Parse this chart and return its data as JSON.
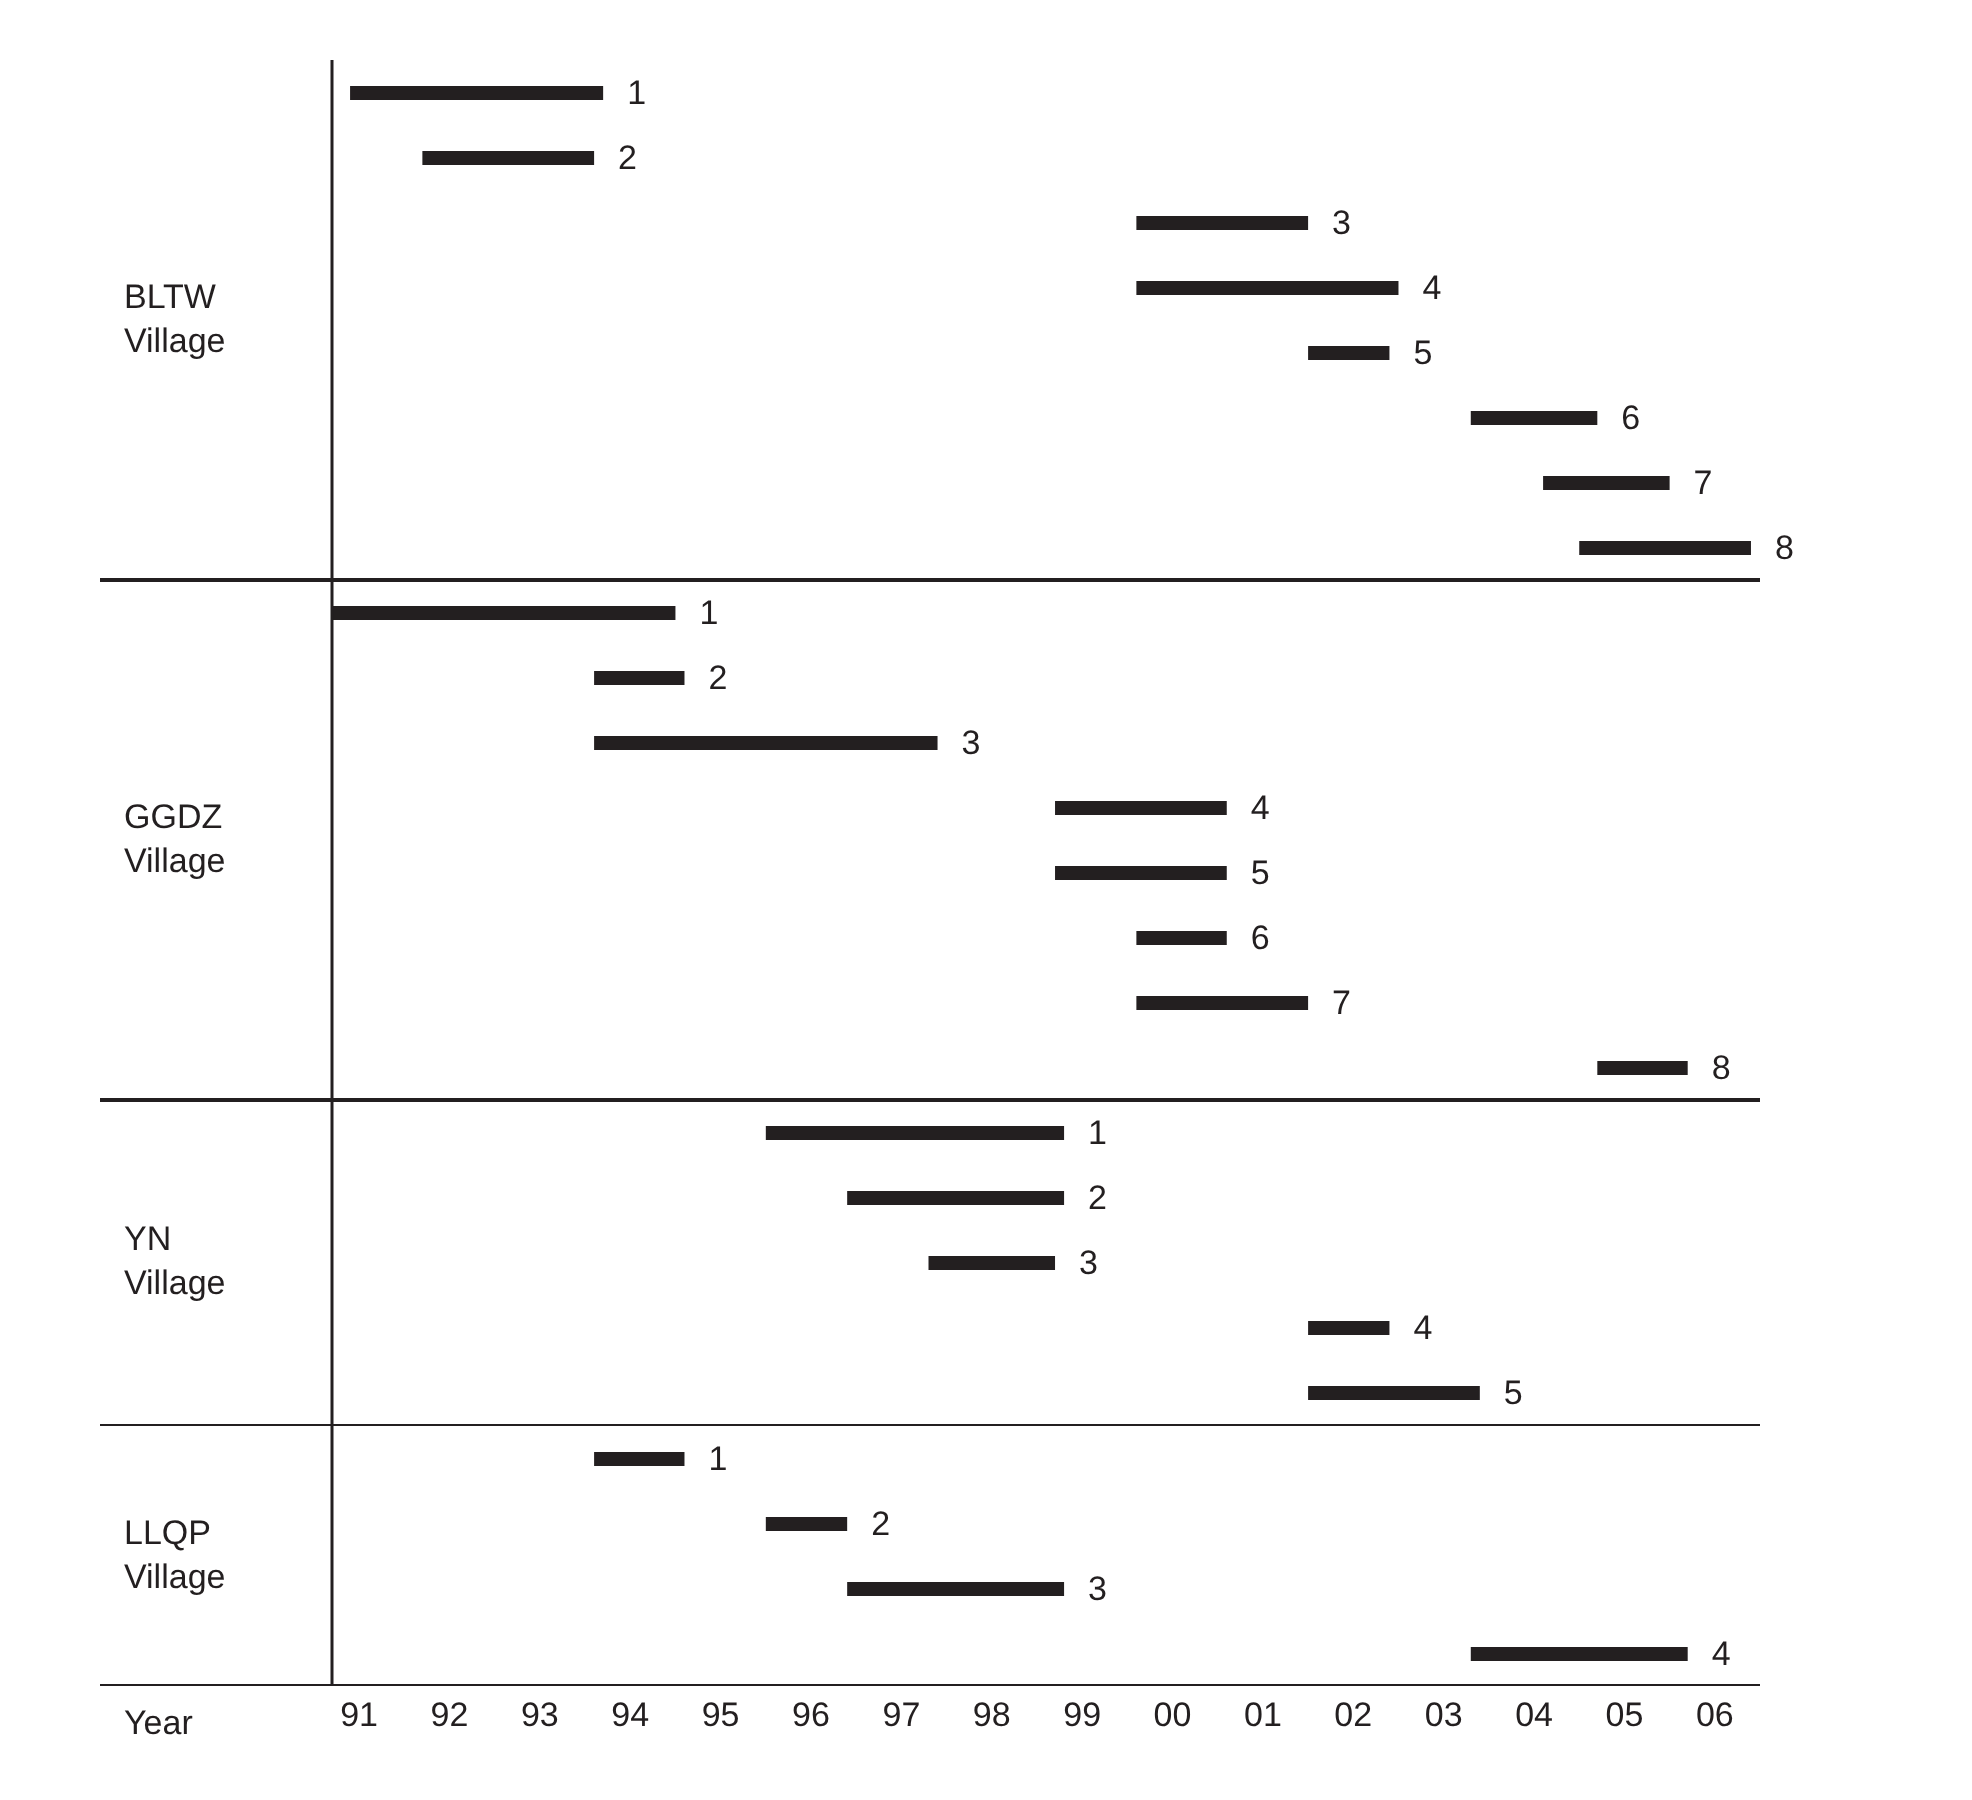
{
  "chart_data": [
    {
      "type": "bar",
      "orientation": "horizontal",
      "ylabel": "BLTW Village",
      "color": "#231f20",
      "tick_labels": false,
      "xlim": [
        1990.7,
        2006.5
      ],
      "categories": [
        "1",
        "2",
        "3",
        "4",
        "5",
        "6",
        "7",
        "8"
      ],
      "base": [
        1990.9,
        1991.7,
        1999.6,
        1999.6,
        2001.5,
        2003.3,
        2004.1,
        2004.5
      ],
      "values": [
        2.8,
        1.9,
        1.9,
        2.9,
        0.9,
        1.4,
        1.4,
        1.9
      ]
    },
    {
      "type": "bar",
      "orientation": "horizontal",
      "ylabel": "GGDZ Village",
      "color": "#231f20",
      "tick_labels": false,
      "xlim": [
        1990.7,
        2006.5
      ],
      "categories": [
        "1",
        "2",
        "3",
        "4",
        "5",
        "6",
        "7",
        "8"
      ],
      "base": [
        1990.7,
        1993.6,
        1993.6,
        1998.7,
        1998.7,
        1999.6,
        1999.6,
        2004.7
      ],
      "values": [
        3.8,
        1.0,
        3.8,
        1.9,
        1.9,
        1.0,
        1.9,
        1.0
      ]
    },
    {
      "type": "bar",
      "orientation": "horizontal",
      "ylabel": "YN Village",
      "color": "#231f20",
      "tick_labels": false,
      "xlim": [
        1990.7,
        2006.5
      ],
      "categories": [
        "1",
        "2",
        "3",
        "4",
        "5"
      ],
      "base": [
        1995.5,
        1996.4,
        1997.3,
        2001.5,
        2001.5
      ],
      "values": [
        3.3,
        2.4,
        1.4,
        0.9,
        1.9
      ]
    },
    {
      "type": "bar",
      "orientation": "horizontal",
      "ylabel": "LLQP Village",
      "xlabel": "Year",
      "color": "#231f20",
      "tick_labels": "x",
      "xlim": [
        1990.7,
        2006.5
      ],
      "xticks": [
        {
          "value": 1991,
          "label": "91"
        },
        {
          "value": 1992,
          "label": "92"
        },
        {
          "value": 1993,
          "label": "93"
        },
        {
          "value": 1994,
          "label": "94"
        },
        {
          "value": 1995,
          "label": "95"
        },
        {
          "value": 1996,
          "label": "96"
        },
        {
          "value": 1997,
          "label": "97"
        },
        {
          "value": 1998,
          "label": "98"
        },
        {
          "value": 1999,
          "label": "99"
        },
        {
          "value": 2000,
          "label": "00"
        },
        {
          "value": 2001,
          "label": "01"
        },
        {
          "value": 2002,
          "label": "02"
        },
        {
          "value": 2003,
          "label": "03"
        },
        {
          "value": 2004,
          "label": "04"
        },
        {
          "value": 2005,
          "label": "05"
        },
        {
          "value": 2006,
          "label": "06"
        }
      ],
      "categories": [
        "1",
        "2",
        "3",
        "4"
      ],
      "base": [
        1993.6,
        1995.5,
        1996.4,
        2003.3
      ],
      "values": [
        1.0,
        0.9,
        2.4,
        2.4
      ]
    }
  ]
}
